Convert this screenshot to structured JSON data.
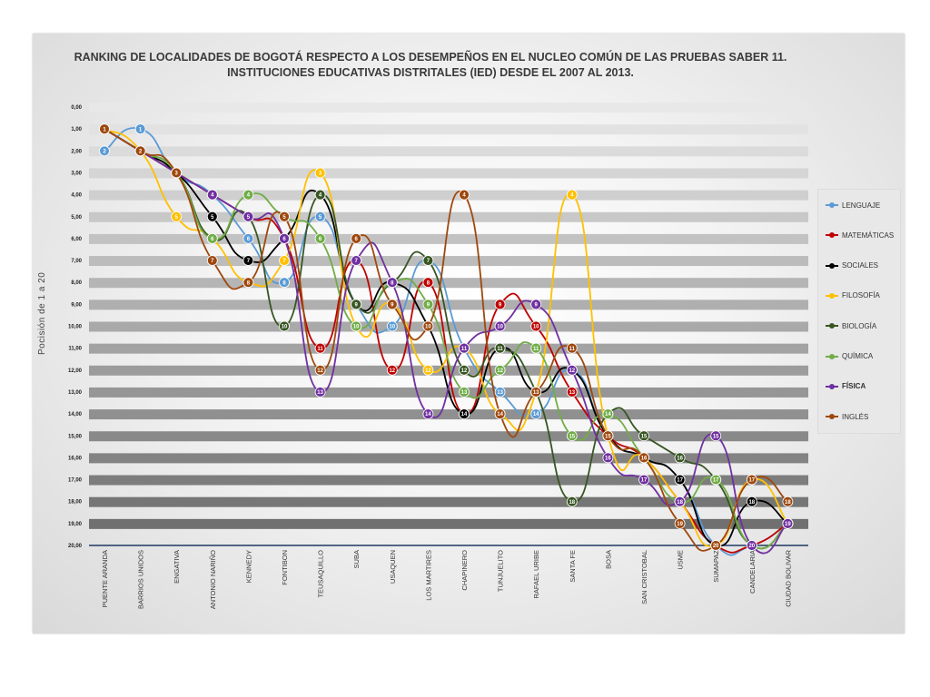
{
  "chart_data": {
    "type": "line",
    "title": "RANKING DE LOCALIDADES DE BOGOTÁ RESPECTO A LOS DESEMPEÑOS EN EL NUCLEO COMÚN DE LAS PRUEBAS SABER 11.",
    "subtitle": "INSTITUCIONES EDUCATIVAS DISTRITALES (IED) DESDE EL 2007 AL 2013.",
    "ylabel": "Pocisión de 1 a 20",
    "xlabel": "",
    "ylim": [
      0,
      20
    ],
    "y_inverted": true,
    "y_ticks": [
      "0,00",
      "1,00",
      "2,00",
      "3,00",
      "4,00",
      "5,00",
      "6,00",
      "7,00",
      "8,00",
      "9,00",
      "10,00",
      "11,00",
      "12,00",
      "13,00",
      "14,00",
      "15,00",
      "16,00",
      "17,00",
      "18,00",
      "19,00",
      "20,00"
    ],
    "legend_position": "right",
    "categories": [
      "PUENTE ARANDA",
      "BARRIOS UNIDOS",
      "ENGATIVA",
      "ANTONIO NARIÑO",
      "KENNEDY",
      "FONTIBON",
      "TEUSAQUILLO",
      "SUBA",
      "USAQUEN",
      "LOS MARTIRES",
      "CHAPINERO",
      "TUNJUELITO",
      "RAFAEL URIBE",
      "SANTA FE",
      "BOSA",
      "SAN CRISTOBAL",
      "USME",
      "SUMAPAZ",
      "CANDELARIA",
      "CIUDAD BOLIVAR"
    ],
    "series": [
      {
        "name": "LENGUAJE",
        "color": "#5b9bd5",
        "values": [
          2,
          1,
          3,
          4,
          6,
          8,
          5,
          9,
          10,
          7,
          11,
          13,
          14,
          12,
          15,
          16,
          17,
          20,
          20,
          19
        ]
      },
      {
        "name": "MATEMÁTICAS",
        "color": "#c00000",
        "values": [
          1,
          2,
          3,
          4,
          5,
          6,
          11,
          7,
          12,
          8,
          14,
          9,
          10,
          13,
          15,
          16,
          18,
          20,
          20,
          19
        ]
      },
      {
        "name": "SOCIALES",
        "color": "#000000",
        "values": [
          1,
          2,
          3,
          5,
          7,
          6,
          4,
          9,
          8,
          10,
          14,
          11,
          13,
          12,
          15,
          16,
          17,
          20,
          18,
          19
        ]
      },
      {
        "name": "FILOSOFÍA",
        "color": "#ffc000",
        "values": [
          1,
          2,
          5,
          6,
          8,
          7,
          3,
          10,
          9,
          12,
          11,
          14,
          13,
          4,
          15,
          16,
          18,
          20,
          17,
          19
        ]
      },
      {
        "name": "BIOLOGÍA",
        "color": "#375623",
        "values": [
          1,
          2,
          3,
          6,
          5,
          10,
          4,
          9,
          8,
          7,
          12,
          11,
          13,
          18,
          14,
          15,
          16,
          17,
          20,
          19
        ]
      },
      {
        "name": "QUÍMICA",
        "color": "#70ad47",
        "values": [
          1,
          2,
          3,
          6,
          4,
          5,
          6,
          10,
          8,
          9,
          13,
          12,
          11,
          15,
          14,
          16,
          18,
          17,
          20,
          19
        ]
      },
      {
        "name": "FÍSICA",
        "color": "#7030a0",
        "values": [
          1,
          2,
          3,
          4,
          5,
          6,
          13,
          7,
          8,
          14,
          11,
          10,
          9,
          12,
          16,
          17,
          18,
          15,
          20,
          19
        ]
      },
      {
        "name": "INGLÉS",
        "color": "#9e480e",
        "values": [
          1,
          2,
          3,
          7,
          8,
          5,
          12,
          6,
          9,
          10,
          4,
          14,
          13,
          11,
          15,
          16,
          19,
          20,
          17,
          18
        ]
      }
    ]
  }
}
